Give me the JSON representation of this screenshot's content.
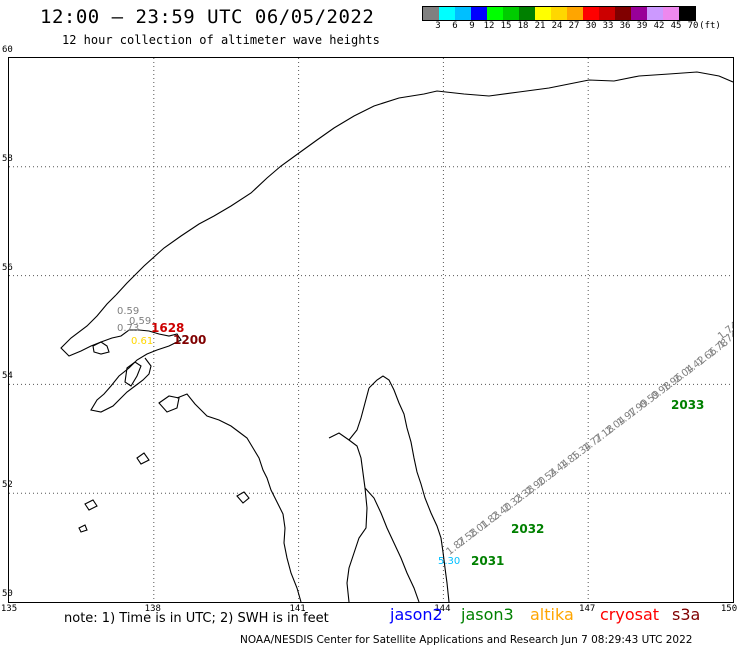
{
  "header": {
    "title": "12:00 — 23:59 UTC 06/05/2022",
    "subtitle": "12 hour collection of altimeter wave heights"
  },
  "colorbar": {
    "colors": [
      "#808080",
      "#00ffff",
      "#00bfff",
      "#0000ff",
      "#00ff00",
      "#00cc00",
      "#008000",
      "#ffff00",
      "#ffd700",
      "#ffa500",
      "#ff0000",
      "#cc0000",
      "#800000",
      "#990099",
      "#cc99ff",
      "#ee88ee",
      "#000000"
    ],
    "labels": [
      "3",
      "6",
      "9",
      "12",
      "15",
      "18",
      "21",
      "24",
      "27",
      "30",
      "33",
      "36",
      "39",
      "42",
      "45",
      "70",
      "(ft)"
    ]
  },
  "axes": {
    "lat_labels": [
      "60",
      "58",
      "56",
      "54",
      "52",
      "50"
    ],
    "lon_labels": [
      "135",
      "138",
      "141",
      "144",
      "147",
      "150"
    ]
  },
  "footer": {
    "note": "note: 1) Time is in UTC; 2) SWH is in feet",
    "satellites": [
      {
        "name": "jason2",
        "color": "#0000ff"
      },
      {
        "name": "jason3",
        "color": "#008000"
      },
      {
        "name": "altika",
        "color": "#ffa500"
      },
      {
        "name": "cryosat",
        "color": "#ff0000"
      },
      {
        "name": "s3a",
        "color": "#800000"
      }
    ],
    "credit": "NOAA/NESDIS Center for Satellite Applications and Research    Jun  7 08:29:43 UTC 2022"
  },
  "track_labels": {
    "times": [
      {
        "text": "1628",
        "color": "#cc0000"
      },
      {
        "text": "1200",
        "color": "#800000"
      },
      {
        "text": "2033",
        "color": "#008000"
      },
      {
        "text": "2032",
        "color": "#008000"
      },
      {
        "text": "2031",
        "color": "#008000"
      }
    ],
    "sea_of_okhotsk_nw": [
      {
        "text": "0.59",
        "color": "#808080"
      },
      {
        "text": "0.59",
        "color": "#808080"
      },
      {
        "text": "0.73",
        "color": "#808080"
      },
      {
        "text": "0.61",
        "color": "#ffd700"
      }
    ],
    "jason3_track": [
      {
        "text": "5.30",
        "color": "#00bfff"
      },
      {
        "text": "1.87",
        "color": "#808080"
      },
      {
        "text": "2.58",
        "color": "#808080"
      },
      {
        "text": "2.01",
        "color": "#808080"
      },
      {
        "text": "1.83",
        "color": "#808080"
      },
      {
        "text": "2.40",
        "color": "#808080"
      },
      {
        "text": "2.33",
        "color": "#808080"
      },
      {
        "text": "2.38",
        "color": "#808080"
      },
      {
        "text": "2.90",
        "color": "#808080"
      },
      {
        "text": "2.54",
        "color": "#808080"
      },
      {
        "text": "2.44",
        "color": "#808080"
      },
      {
        "text": "1.85",
        "color": "#808080"
      },
      {
        "text": "1.34",
        "color": "#808080"
      },
      {
        "text": "1.77",
        "color": "#808080"
      },
      {
        "text": "2.18",
        "color": "#808080"
      },
      {
        "text": "2.04",
        "color": "#808080"
      },
      {
        "text": "1.97",
        "color": "#808080"
      },
      {
        "text": "1.99",
        "color": "#808080"
      },
      {
        "text": "0.59",
        "color": "#808080"
      },
      {
        "text": "0.98",
        "color": "#808080"
      },
      {
        "text": "1.96",
        "color": "#808080"
      },
      {
        "text": "2.04",
        "color": "#808080"
      },
      {
        "text": "1.42",
        "color": "#808080"
      },
      {
        "text": "1.66",
        "color": "#808080"
      },
      {
        "text": "2.78",
        "color": "#808080"
      },
      {
        "text": "1.74",
        "color": "#808080"
      },
      {
        "text": "1.74",
        "color": "#808080"
      }
    ]
  }
}
